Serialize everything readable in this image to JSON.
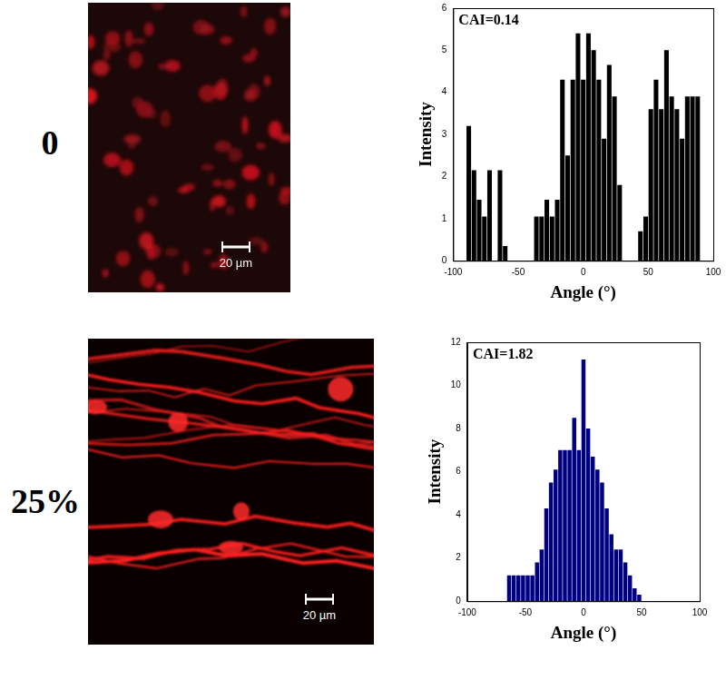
{
  "chart_data": [
    {
      "type": "histogram",
      "annotation": "CAI=0.14",
      "x_label": "Angle (°)",
      "y_label": "Intensity",
      "bins": [
        -90,
        -86,
        -82,
        -78,
        -74,
        -70,
        -66,
        -62,
        -58,
        -54,
        -50,
        -46,
        -42,
        -38,
        -34,
        -30,
        -26,
        -22,
        -18,
        -14,
        -10,
        -6,
        -2,
        2,
        6,
        10,
        14,
        18,
        22,
        26,
        30,
        34,
        38,
        42,
        46,
        50,
        54,
        58,
        62,
        66,
        70,
        74,
        78,
        82,
        86,
        90
      ],
      "values": [
        3.2,
        2.15,
        1.45,
        1.05,
        2.15,
        0,
        2.15,
        0.35,
        0,
        0,
        0,
        0,
        0,
        1.05,
        1.05,
        1.45,
        1.05,
        1.45,
        4.3,
        2.5,
        4.3,
        5.4,
        4.3,
        5.4,
        5.0,
        4.3,
        2.9,
        4.65,
        3.9,
        1.8,
        0,
        0,
        0,
        0.7,
        1.05,
        3.6,
        4.3,
        3.6,
        5.0,
        3.9,
        3.6,
        2.9,
        3.9,
        3.9,
        3.9
      ],
      "color": "#000000",
      "xlim": [
        -100,
        100
      ],
      "xticks": [
        -100,
        -50,
        0,
        50,
        100
      ],
      "ylim": [
        0,
        6
      ],
      "yticks": [
        0,
        1,
        2,
        3,
        4,
        5,
        6
      ],
      "grid": false
    },
    {
      "type": "histogram",
      "annotation": "CAI=1.82",
      "x_label": "Angle (°)",
      "y_label": "Intensity",
      "bins": [
        -90,
        -86,
        -82,
        -78,
        -74,
        -70,
        -66,
        -62,
        -58,
        -54,
        -50,
        -46,
        -42,
        -38,
        -34,
        -30,
        -26,
        -22,
        -18,
        -14,
        -10,
        -6,
        -2,
        2,
        6,
        10,
        14,
        18,
        22,
        26,
        30,
        34,
        38,
        42,
        46,
        50,
        54,
        58,
        62,
        66,
        70,
        74,
        78,
        82,
        86,
        90
      ],
      "values": [
        0,
        0,
        0,
        0,
        0,
        0,
        1.2,
        1.2,
        1.2,
        1.2,
        1.2,
        1.2,
        1.8,
        2.4,
        4.3,
        5.5,
        6.1,
        7.0,
        7.0,
        7.0,
        8.5,
        7.0,
        11.2,
        8.0,
        6.7,
        6.1,
        5.5,
        4.3,
        3.1,
        2.4,
        2.4,
        1.8,
        1.2,
        0.6,
        0.3,
        0,
        0,
        0,
        0,
        0,
        0,
        0,
        0,
        0,
        0
      ],
      "color": "#000080",
      "xlim": [
        -100,
        100
      ],
      "xticks": [
        -100,
        -50,
        0,
        50,
        100
      ],
      "ylim": [
        0,
        12
      ],
      "yticks": [
        0,
        2,
        4,
        6,
        8,
        10,
        12
      ],
      "grid": false
    }
  ],
  "panels": [
    {
      "label": "0",
      "scale_bar": "20 µm"
    },
    {
      "label": "25%",
      "scale_bar": "20 µm"
    }
  ]
}
